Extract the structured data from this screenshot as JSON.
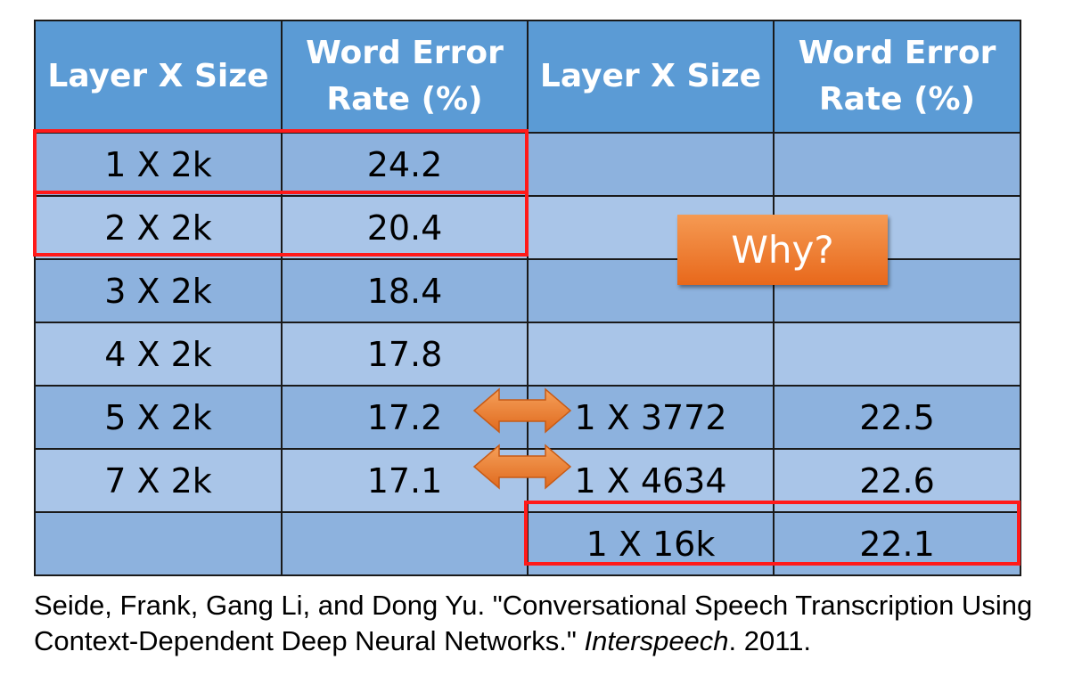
{
  "table": {
    "headers": [
      "Layer X Size",
      "Word Error Rate (%)",
      "Layer X Size",
      "Word Error Rate (%)"
    ],
    "rows": [
      [
        "1 X 2k",
        "24.2",
        "",
        ""
      ],
      [
        "2 X 2k",
        "20.4",
        "",
        ""
      ],
      [
        "3 X 2k",
        "18.4",
        "",
        ""
      ],
      [
        "4 X 2k",
        "17.8",
        "",
        ""
      ],
      [
        "5 X 2k",
        "17.2",
        "1 X 3772",
        "22.5"
      ],
      [
        "7 X 2k",
        "17.1",
        "1 X 4634",
        "22.6"
      ],
      [
        "",
        "",
        "1 X 16k",
        "22.1"
      ]
    ]
  },
  "callout": {
    "label": "Why?"
  },
  "citation": {
    "before_italic": "Seide, Frank, Gang Li, and Dong Yu. \"Conversational Speech Transcription Using Context-Dependent Deep Neural Networks.\" ",
    "italic": "Interspeech",
    "after_italic": ". 2011."
  },
  "colors": {
    "header_bg": "#5b9bd5",
    "row_dark": "#8db2de",
    "row_light": "#a9c5e8",
    "highlight_border": "#ff1a1a",
    "callout_bg": "#ed7d31"
  }
}
